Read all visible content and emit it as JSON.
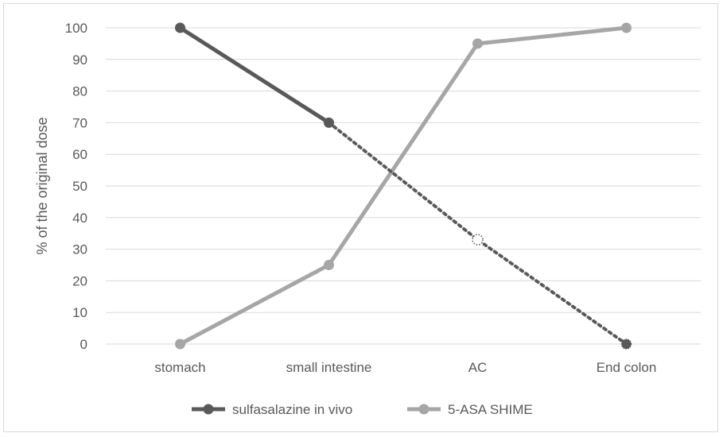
{
  "chart_data": {
    "type": "line",
    "categories": [
      "stomach",
      "small intestine",
      "AC",
      "End colon"
    ],
    "ylabel": "% of the original dose",
    "ylim": [
      0,
      100
    ],
    "yticks": [
      0,
      10,
      20,
      30,
      40,
      50,
      60,
      70,
      80,
      90,
      100
    ],
    "grid": true,
    "legend_position": "bottom",
    "series": [
      {
        "name": "sulfasalazine in vivo",
        "values": [
          100,
          70,
          33,
          0
        ],
        "color": "#595959",
        "line_style": "solid through small intestine, dotted thereafter"
      },
      {
        "name": "5-ASA SHIME",
        "values": [
          0,
          25,
          95,
          100
        ],
        "color": "#a6a6a6",
        "line_style": "solid"
      }
    ]
  }
}
